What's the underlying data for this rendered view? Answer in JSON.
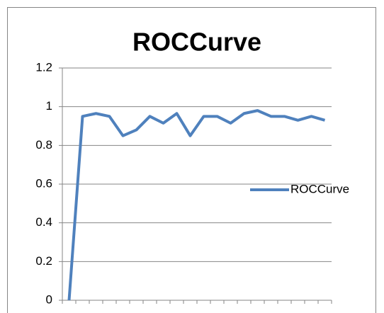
{
  "chart_data": {
    "type": "line",
    "title": "ROCCurve",
    "categories": [
      null,
      null,
      null,
      null,
      null,
      null,
      null,
      null,
      null,
      null,
      null,
      null,
      null,
      null,
      null,
      null,
      null,
      null,
      null,
      null
    ],
    "series": [
      {
        "name": "ROCCurve",
        "color": "#4f81bd",
        "values": [
          0,
          0.95,
          0.965,
          0.95,
          0.85,
          0.88,
          0.95,
          0.915,
          0.965,
          0.85,
          0.95,
          0.95,
          0.915,
          0.965,
          0.98,
          0.95,
          0.95,
          0.93,
          0.95,
          0.93
        ]
      }
    ],
    "ylim": [
      0,
      1.2
    ],
    "yticks": [
      0,
      0.2,
      0.4,
      0.6,
      0.8,
      1,
      1.2
    ],
    "grid": true,
    "legend": "right"
  }
}
